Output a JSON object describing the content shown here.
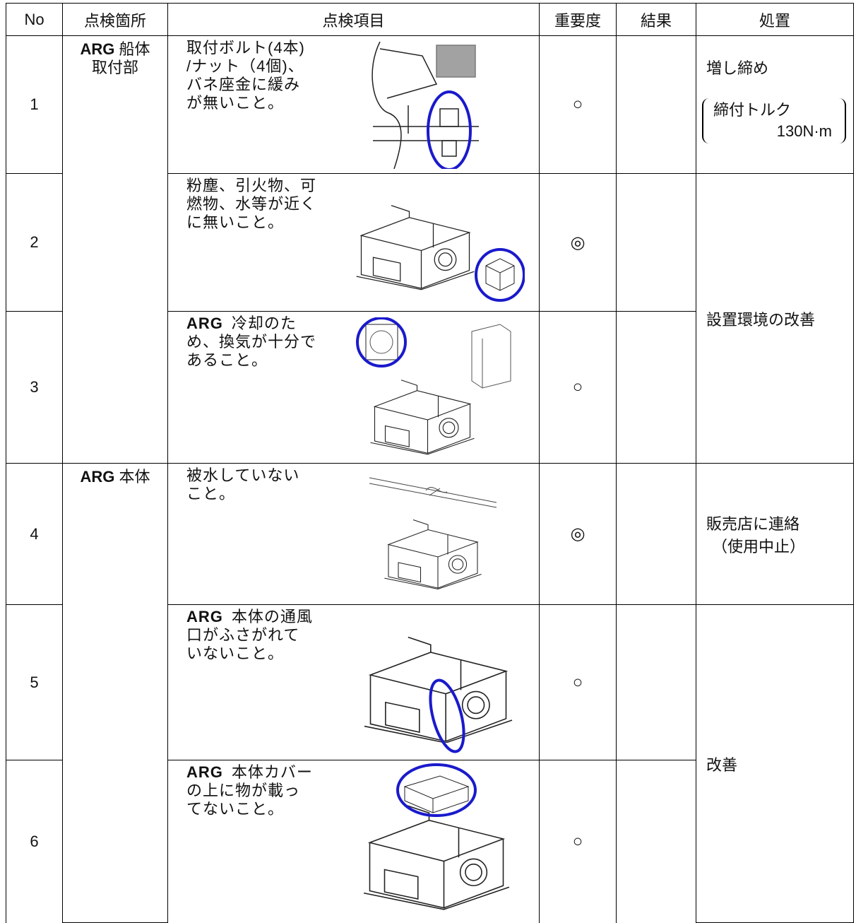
{
  "header": [
    "No",
    "点検箇所",
    "点検項目",
    "重要度",
    "結果",
    "処置"
  ],
  "locations": [
    {
      "bold": "ARG",
      "text": "船体"
    },
    {
      "bold": "ARG",
      "text": "本体"
    }
  ],
  "location_second_line": "取付部",
  "rows": [
    {
      "no": "1",
      "item_lines": [
        "取付ボルト(4本)",
        "/ナット（4個)、",
        "バネ座金に緩み",
        "が無いこと。"
      ],
      "importance": "○"
    },
    {
      "no": "2",
      "item_lines": [
        "粉塵、引火物、可",
        "燃物、水等が近く",
        "に無いこと。"
      ],
      "importance": "◎"
    },
    {
      "no": "3",
      "item_bold": "ARG",
      "item_lines": [
        "冷却のた",
        "め、換気が十分で",
        "あること。"
      ],
      "importance": "○"
    },
    {
      "no": "4",
      "item_lines": [
        "被水していない",
        "こと。"
      ],
      "importance": "◎"
    },
    {
      "no": "5",
      "item_bold": "ARG",
      "item_lines": [
        "本体の通風",
        "口がふさがれて",
        "いないこと。"
      ],
      "importance": "○"
    },
    {
      "no": "6",
      "item_bold": "ARG",
      "item_lines": [
        "本体カバー",
        "の上に物が載っ",
        "てないこと。"
      ],
      "importance": "○"
    }
  ],
  "actions": [
    {
      "text": "増し締め",
      "note_label": "締付トルク",
      "note_value": "130N·m"
    },
    {
      "text": "設置環境の改善"
    },
    {
      "text": "販売店に連絡",
      "sub": "（使用中止）"
    },
    {
      "text": "改善"
    }
  ]
}
